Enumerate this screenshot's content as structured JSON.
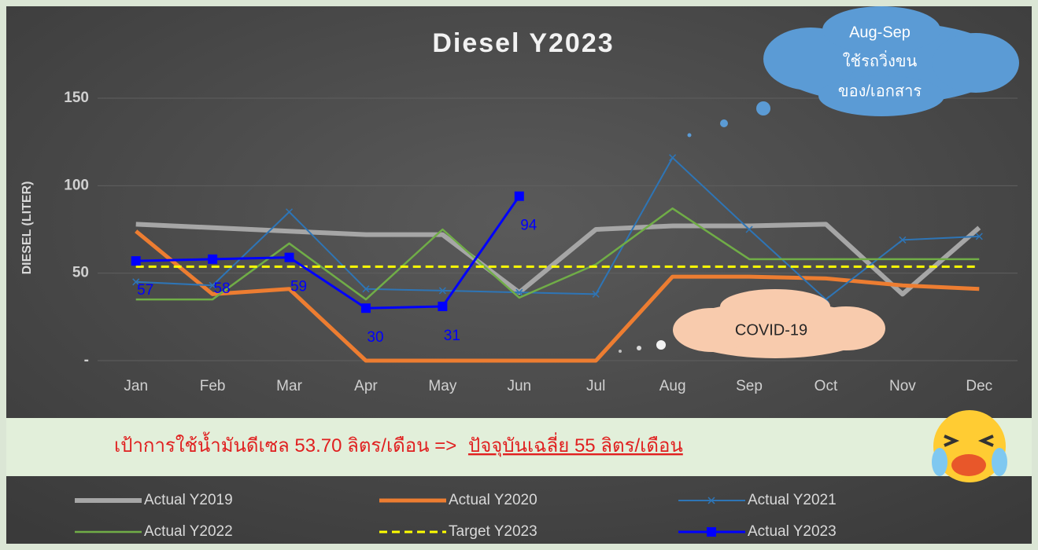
{
  "chart_data": {
    "type": "line",
    "title": "Diesel Y2023",
    "y_label": "DIESEL (LITER)",
    "categories": [
      "Jan",
      "Feb",
      "Mar",
      "Apr",
      "May",
      "Jun",
      "Jul",
      "Aug",
      "Sep",
      "Oct",
      "Nov",
      "Dec"
    ],
    "ylim": [
      0,
      150
    ],
    "yticks": [
      {
        "value": 0,
        "label": "-"
      },
      50,
      100,
      150
    ],
    "grid": true,
    "legend": "bottom",
    "series": [
      {
        "name": "Actual Y2019",
        "color": "#a6a6a6",
        "values": [
          78,
          76,
          74,
          72,
          72,
          39,
          75,
          77,
          77,
          78,
          38,
          76
        ]
      },
      {
        "name": "Actual Y2020",
        "color": "#ed7d31",
        "values": [
          74,
          38,
          41,
          0,
          0,
          0,
          0,
          48,
          48,
          47,
          43,
          41
        ]
      },
      {
        "name": "Actual Y2021",
        "color": "#2e75b6",
        "values": [
          45,
          43,
          85,
          41,
          40,
          39,
          38,
          116,
          75,
          35,
          69,
          71
        ]
      },
      {
        "name": "Actual Y2022",
        "color": "#70ad47",
        "values": [
          35,
          35,
          67,
          35,
          75,
          36,
          55,
          87,
          58,
          58,
          58,
          58
        ]
      },
      {
        "name": "Target Y2023",
        "color": "#ffff00",
        "values": [
          53.7,
          53.7,
          53.7,
          53.7,
          53.7,
          53.7,
          53.7,
          53.7,
          53.7,
          53.7,
          53.7,
          53.7
        ]
      },
      {
        "name": "Actual Y2023",
        "color": "#0000ff",
        "values": [
          57,
          58,
          59,
          30,
          31,
          94,
          null,
          null,
          null,
          null,
          null,
          null
        ]
      }
    ],
    "annotations": {
      "cloud": [
        "Aug-Sep",
        "ใช้รถวิ่งขน",
        "ของ/เอกสาร"
      ],
      "covid": "COVID-19"
    },
    "banner": {
      "target": "เป้าการใช้น้ำมันดีเซล 53.70 ลิตร/เดือน =>",
      "current": "ปัจจุบันเฉลี่ย 55 ลิตร/เดือน"
    }
  }
}
